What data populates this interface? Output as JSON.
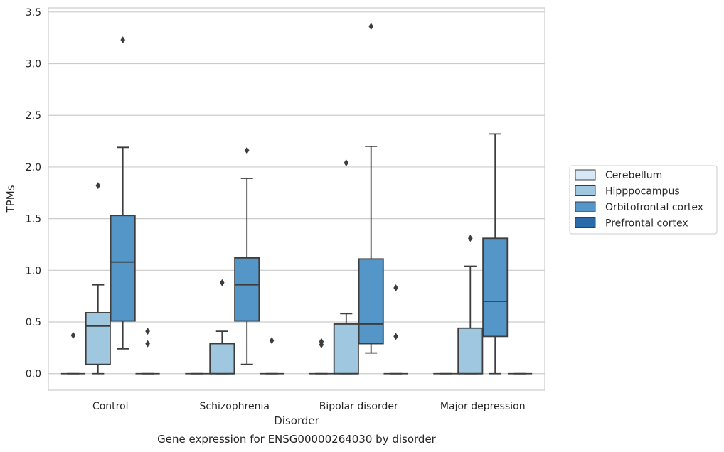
{
  "chart_data": {
    "type": "box",
    "xlabel": "Disorder",
    "ylabel": "TPMs",
    "caption": "Gene expression for ENSG00000264030 by disorder",
    "categories": [
      "Control",
      "Schizophrenia",
      "Bipolar disorder",
      "Major depression"
    ],
    "ylim": [
      -0.16,
      3.54
    ],
    "yticks": [
      0.0,
      0.5,
      1.0,
      1.5,
      2.0,
      2.5,
      3.0,
      3.5
    ],
    "ytick_labels": [
      "0.0",
      "0.5",
      "1.0",
      "1.5",
      "2.0",
      "2.5",
      "3.0",
      "3.5"
    ],
    "grid": "horizontal",
    "legend_position": "right",
    "series": [
      {
        "name": "Cerebellum",
        "color": "#d8e7f5",
        "boxes": [
          {
            "q1": 0.0,
            "median": 0.0,
            "q3": 0.0,
            "whislo": 0.0,
            "whishi": 0.0,
            "fliers": [
              0.37
            ]
          },
          {
            "q1": 0.0,
            "median": 0.0,
            "q3": 0.0,
            "whislo": 0.0,
            "whishi": 0.0,
            "fliers": []
          },
          {
            "q1": 0.0,
            "median": 0.0,
            "q3": 0.0,
            "whislo": 0.0,
            "whishi": 0.0,
            "fliers": [
              0.28,
              0.31
            ]
          },
          {
            "q1": 0.0,
            "median": 0.0,
            "q3": 0.0,
            "whislo": 0.0,
            "whishi": 0.0,
            "fliers": []
          }
        ]
      },
      {
        "name": "Hipppocampus",
        "color": "#9fc8e0",
        "boxes": [
          {
            "q1": 0.09,
            "median": 0.46,
            "q3": 0.59,
            "whislo": 0.0,
            "whishi": 0.86,
            "fliers": [
              1.82
            ]
          },
          {
            "q1": 0.0,
            "median": 0.0,
            "q3": 0.29,
            "whislo": 0.0,
            "whishi": 0.41,
            "fliers": [
              0.88
            ]
          },
          {
            "q1": 0.0,
            "median": 0.0,
            "q3": 0.48,
            "whislo": 0.0,
            "whishi": 0.58,
            "fliers": [
              2.04
            ]
          },
          {
            "q1": 0.0,
            "median": 0.0,
            "q3": 0.44,
            "whislo": 0.0,
            "whishi": 1.04,
            "fliers": [
              1.31
            ]
          }
        ]
      },
      {
        "name": "Orbitofrontal cortex",
        "color": "#5596c8",
        "boxes": [
          {
            "q1": 0.51,
            "median": 1.08,
            "q3": 1.53,
            "whislo": 0.24,
            "whishi": 2.19,
            "fliers": [
              3.23
            ]
          },
          {
            "q1": 0.51,
            "median": 0.86,
            "q3": 1.12,
            "whislo": 0.09,
            "whishi": 1.89,
            "fliers": [
              2.16
            ]
          },
          {
            "q1": 0.29,
            "median": 0.48,
            "q3": 1.11,
            "whislo": 0.2,
            "whishi": 2.2,
            "fliers": [
              3.36
            ]
          },
          {
            "q1": 0.36,
            "median": 0.7,
            "q3": 1.31,
            "whislo": 0.0,
            "whishi": 2.32,
            "fliers": []
          }
        ]
      },
      {
        "name": "Prefrontal cortex",
        "color": "#2b6aa8",
        "boxes": [
          {
            "q1": 0.0,
            "median": 0.0,
            "q3": 0.0,
            "whislo": 0.0,
            "whishi": 0.0,
            "fliers": [
              0.29,
              0.41
            ]
          },
          {
            "q1": 0.0,
            "median": 0.0,
            "q3": 0.0,
            "whislo": 0.0,
            "whishi": 0.0,
            "fliers": [
              0.32
            ]
          },
          {
            "q1": 0.0,
            "median": 0.0,
            "q3": 0.0,
            "whislo": 0.0,
            "whishi": 0.0,
            "fliers": [
              0.36,
              0.83
            ]
          },
          {
            "q1": 0.0,
            "median": 0.0,
            "q3": 0.0,
            "whislo": 0.0,
            "whishi": 0.0,
            "fliers": []
          }
        ]
      }
    ]
  }
}
